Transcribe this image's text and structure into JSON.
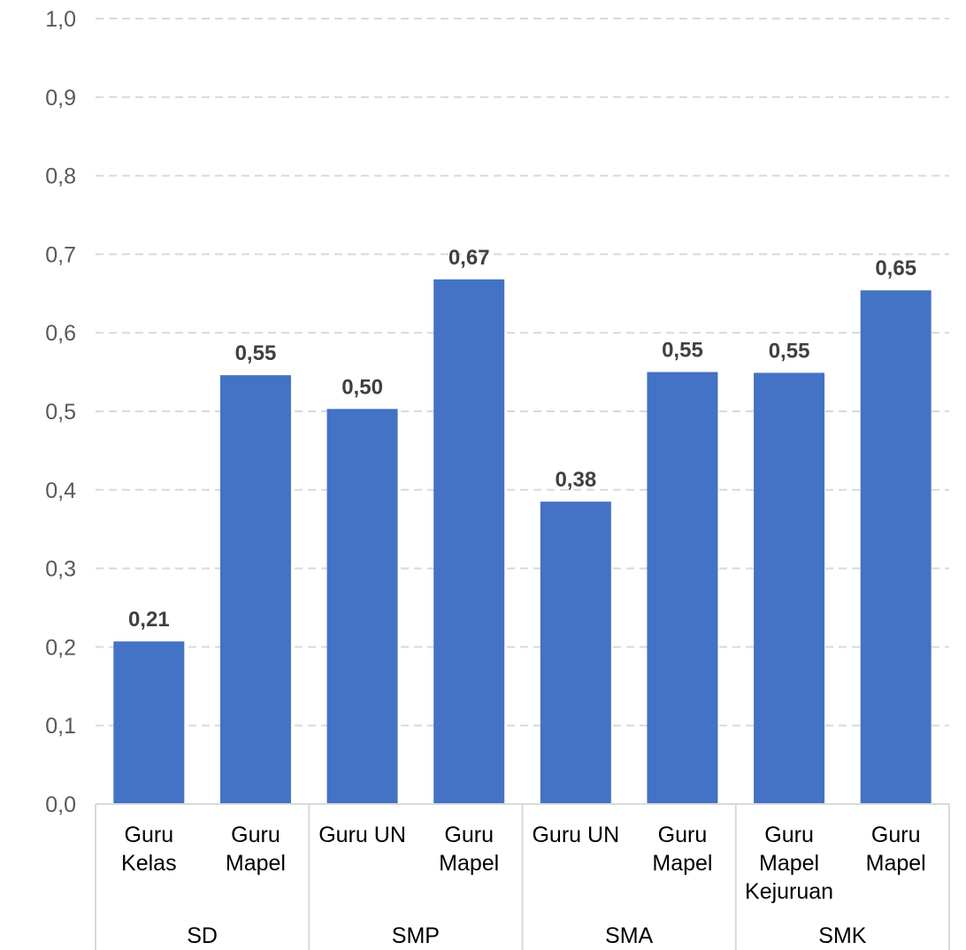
{
  "chart_data": {
    "type": "bar",
    "ylim": [
      0,
      1.0
    ],
    "y_ticks": [
      "0,0",
      "0,1",
      "0,2",
      "0,3",
      "0,4",
      "0,5",
      "0,6",
      "0,7",
      "0,8",
      "0,9",
      "1,0"
    ],
    "grid": true,
    "bar_color": "#4472C4",
    "categories": [
      {
        "label": [
          "Guru",
          "Kelas"
        ],
        "value": 0.207,
        "data_label": "0,21"
      },
      {
        "label": [
          "Guru",
          "Mapel"
        ],
        "value": 0.546,
        "data_label": "0,55"
      },
      {
        "label": [
          "Guru UN"
        ],
        "value": 0.503,
        "data_label": "0,50"
      },
      {
        "label": [
          "Guru",
          "Mapel"
        ],
        "value": 0.668,
        "data_label": "0,67"
      },
      {
        "label": [
          "Guru UN"
        ],
        "value": 0.385,
        "data_label": "0,38"
      },
      {
        "label": [
          "Guru",
          "Mapel"
        ],
        "value": 0.55,
        "data_label": "0,55"
      },
      {
        "label": [
          "Guru",
          "Mapel",
          "Kejuruan"
        ],
        "value": 0.549,
        "data_label": "0,55"
      },
      {
        "label": [
          "Guru",
          "Mapel"
        ],
        "value": 0.654,
        "data_label": "0,65"
      }
    ],
    "groups": [
      {
        "name": "SD",
        "span": 2
      },
      {
        "name": "SMP",
        "span": 2
      },
      {
        "name": "SMA",
        "span": 2
      },
      {
        "name": "SMK",
        "span": 2
      }
    ]
  }
}
